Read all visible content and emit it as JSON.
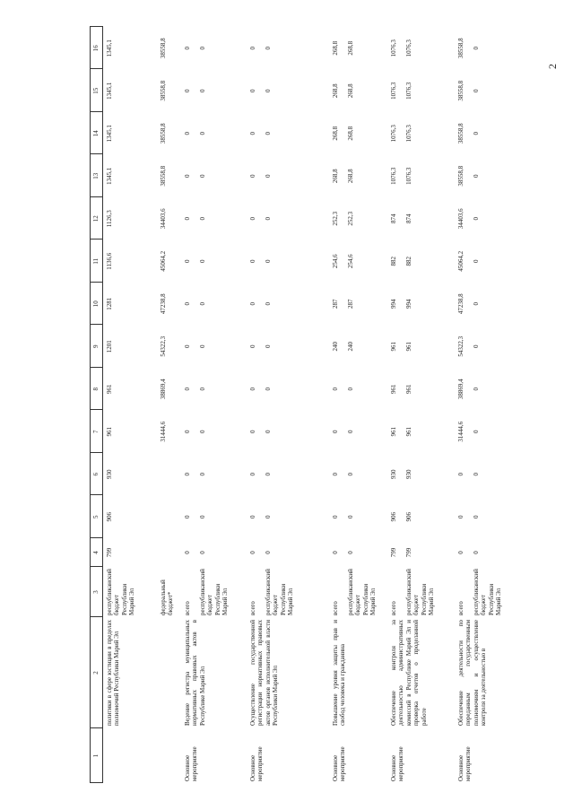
{
  "page_number": "2",
  "header": [
    "1",
    "2",
    "3",
    "4",
    "5",
    "6",
    "7",
    "8",
    "9",
    "10",
    "11",
    "12",
    "13",
    "14",
    "15",
    "16"
  ],
  "rows": [
    {
      "col1": "",
      "col2": "политики в сфере юстиции в пределах полномочий Республики Марий Эл",
      "subrows": [
        {
          "source": "республикан­ский бюджет Республики Марий Эл",
          "values": [
            "799",
            "906",
            "930",
            "961",
            "961",
            "1201",
            "1281",
            "1136,6",
            "1126,3",
            "1345,1",
            "1345,1",
            "1345,1",
            "1345,1"
          ]
        },
        {
          "source": "федеральный бюджет*",
          "values": [
            "",
            "",
            "",
            "31444,6",
            "38869,4",
            "54322,3",
            "47238,8",
            "45064,2",
            "34403,6",
            "38558,8",
            "38558,8",
            "38558,8",
            "38558,8"
          ]
        }
      ]
    },
    {
      "col1": "Основное мероприятие",
      "col2": "Ведение регистра муниципальных нормативных правовых актов в Республике Марий Эл",
      "subrows": [
        {
          "source": "всего",
          "values": [
            "0",
            "0",
            "0",
            "0",
            "0",
            "0",
            "0",
            "0",
            "0",
            "0",
            "0",
            "0",
            "0"
          ]
        },
        {
          "source": "республикан­ский бюджет Республики Марий Эл",
          "values": [
            "0",
            "0",
            "0",
            "0",
            "0",
            "0",
            "0",
            "0",
            "0",
            "0",
            "0",
            "0",
            "0"
          ]
        }
      ]
    },
    {
      "col1": "Основное мероприятие",
      "col2": "Осуществление государственной регистрации нормативных правовых актов органов исполнительной власти Республики Марий Эл",
      "subrows": [
        {
          "source": "всего",
          "values": [
            "0",
            "0",
            "0",
            "0",
            "0",
            "0",
            "0",
            "0",
            "0",
            "0",
            "0",
            "0",
            "0"
          ]
        },
        {
          "source": "республикан­ский бюджет Республики Марий Эл",
          "values": [
            "0",
            "0",
            "0",
            "0",
            "0",
            "0",
            "0",
            "0",
            "0",
            "0",
            "0",
            "0",
            "0"
          ]
        }
      ]
    },
    {
      "col1": "Основное мероприятие",
      "col2": "Повышение уровня защиты прав и свобод человека и гражданина",
      "subrows": [
        {
          "source": "всего",
          "values": [
            "0",
            "0",
            "0",
            "0",
            "0",
            "240",
            "287",
            "254,6",
            "252,3",
            "268,8",
            "268,8",
            "268,8",
            "268,8"
          ]
        },
        {
          "source": "республикан­ский бюджет Республики Марий Эл",
          "values": [
            "0",
            "0",
            "0",
            "0",
            "0",
            "240",
            "287",
            "254,6",
            "252,3",
            "268,8",
            "268,8",
            "268,8",
            "268,8"
          ]
        }
      ]
    },
    {
      "col1": "Основное мероприятие",
      "col2": "Обеспечение контроля за деятельностью административных комиссий в Республике Марий Эл и проверка отчетов о проделанной работе",
      "subrows": [
        {
          "source": "всего",
          "values": [
            "799",
            "906",
            "930",
            "961",
            "961",
            "961",
            "994",
            "882",
            "874",
            "1076,3",
            "1076,3",
            "1076,3",
            "1076,3"
          ]
        },
        {
          "source": "республикан­ский бюджет Республики Марий Эл",
          "values": [
            "799",
            "906",
            "930",
            "961",
            "961",
            "961",
            "994",
            "882",
            "874",
            "1076,3",
            "1076,3",
            "1076,3",
            "1076,3"
          ]
        }
      ]
    },
    {
      "col1": "Основное мероприятие",
      "col2": "Обеспечение деятельности по переданным государственным полномочиям и осуществление контроля за деятельностью в",
      "subrows": [
        {
          "source": "всего",
          "values": [
            "0",
            "0",
            "0",
            "31444,6",
            "38869,4",
            "54322,3",
            "47238,8",
            "45064,2",
            "34403,6",
            "38558,8",
            "38558,8",
            "38558,8",
            "38558,8"
          ]
        },
        {
          "source": "республикан­ский бюджет Республики Марий Эл",
          "values": [
            "0",
            "0",
            "0",
            "0",
            "0",
            "0",
            "0",
            "0",
            "0",
            "0",
            "0",
            "0",
            "0"
          ]
        }
      ]
    }
  ]
}
